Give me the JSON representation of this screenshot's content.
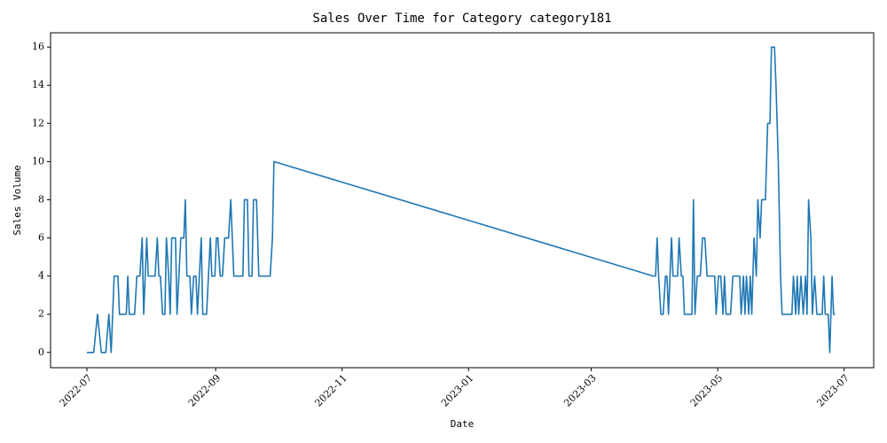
{
  "chart_data": {
    "type": "line",
    "title": "Sales Over Time for Category category181",
    "x_label": "Date",
    "y_label": "Sales Volume",
    "color": "#1f77b4",
    "x": [
      2022.496,
      2022.505,
      2022.51,
      2022.515,
      2022.521,
      2022.525,
      2022.528,
      2022.532,
      2022.537,
      2022.539,
      2022.548,
      2022.55,
      2022.552,
      2022.559,
      2022.562,
      2022.566,
      2022.569,
      2022.571,
      2022.575,
      2022.577,
      2022.586,
      2022.589,
      2022.591,
      2022.593,
      2022.596,
      2022.599,
      2022.601,
      2022.604,
      2022.606,
      2022.608,
      2022.613,
      2022.615,
      2022.62,
      2022.624,
      2022.626,
      2022.628,
      2022.632,
      2022.634,
      2022.637,
      2022.64,
      2022.642,
      2022.647,
      2022.649,
      2022.654,
      2022.659,
      2022.661,
      2022.665,
      2022.667,
      2022.669,
      2022.672,
      2022.675,
      2022.678,
      2022.683,
      2022.686,
      2022.688,
      2022.69,
      2022.702,
      2022.704,
      2022.708,
      2022.71,
      2022.714,
      2022.716,
      2022.72,
      2022.723,
      2022.738,
      2022.741,
      2022.743,
      2023.244,
      2023.247,
      2023.249,
      2023.251,
      2023.254,
      2023.257,
      2023.26,
      2023.262,
      2023.264,
      2023.268,
      2023.27,
      2023.276,
      2023.278,
      2023.281,
      2023.283,
      2023.285,
      2023.295,
      2023.297,
      2023.299,
      2023.302,
      2023.306,
      2023.309,
      2023.312,
      2023.315,
      2023.325,
      2023.327,
      2023.33,
      2023.333,
      2023.336,
      2023.338,
      2023.34,
      2023.346,
      2023.349,
      2023.358,
      2023.36,
      2023.363,
      2023.365,
      2023.367,
      2023.37,
      2023.372,
      2023.374,
      2023.377,
      2023.38,
      2023.382,
      2023.385,
      2023.387,
      2023.392,
      2023.395,
      2023.398,
      2023.4,
      2023.404,
      2023.406,
      2023.409,
      2023.412,
      2023.414,
      2023.427,
      2023.429,
      2023.432,
      2023.434,
      2023.436,
      2023.439,
      2023.442,
      2023.445,
      2023.447,
      2023.449,
      2023.452,
      2023.454,
      2023.457,
      2023.46,
      2023.467,
      2023.469,
      2023.471,
      2023.475,
      2023.477,
      2023.48,
      2023.482,
      2023.484
    ],
    "values": [
      0,
      0,
      2,
      0,
      0,
      2,
      0,
      4,
      4,
      2,
      2,
      4,
      2,
      2,
      4,
      4,
      6,
      2,
      6,
      4,
      4,
      6,
      4,
      4,
      2,
      2,
      6,
      4,
      2,
      6,
      6,
      2,
      6,
      6,
      8,
      4,
      4,
      2,
      4,
      4,
      2,
      6,
      2,
      2,
      6,
      4,
      4,
      6,
      6,
      4,
      4,
      6,
      6,
      8,
      6,
      4,
      4,
      8,
      8,
      4,
      4,
      8,
      8,
      4,
      4,
      6,
      10,
      4,
      4,
      6,
      4,
      2,
      2,
      4,
      4,
      2,
      6,
      4,
      4,
      6,
      4,
      4,
      2,
      2,
      8,
      2,
      4,
      4,
      6,
      6,
      4,
      4,
      2,
      4,
      4,
      2,
      4,
      2,
      2,
      4,
      4,
      2,
      4,
      2,
      4,
      2,
      4,
      2,
      6,
      4,
      8,
      6,
      8,
      8,
      12,
      12,
      16,
      16,
      14,
      10,
      4,
      2,
      2,
      4,
      2,
      4,
      2,
      4,
      2,
      4,
      2,
      8,
      6,
      2,
      4,
      2,
      2,
      4,
      2,
      2,
      0,
      4,
      2,
      2
    ],
    "xlim": [
      2022.448,
      2023.535
    ],
    "ylim": [
      -0.8,
      16.75
    ],
    "xticks": [
      {
        "value": 2022.496,
        "label": "2022-07"
      },
      {
        "value": 2022.666,
        "label": "2022-09"
      },
      {
        "value": 2022.833,
        "label": "2022-11"
      },
      {
        "value": 2023.0,
        "label": "2023-01"
      },
      {
        "value": 2023.162,
        "label": "2023-03"
      },
      {
        "value": 2023.329,
        "label": "2023-05"
      },
      {
        "value": 2023.496,
        "label": "2023-07"
      }
    ],
    "yticks": [
      0,
      2,
      4,
      6,
      8,
      10,
      12,
      14,
      16
    ]
  }
}
